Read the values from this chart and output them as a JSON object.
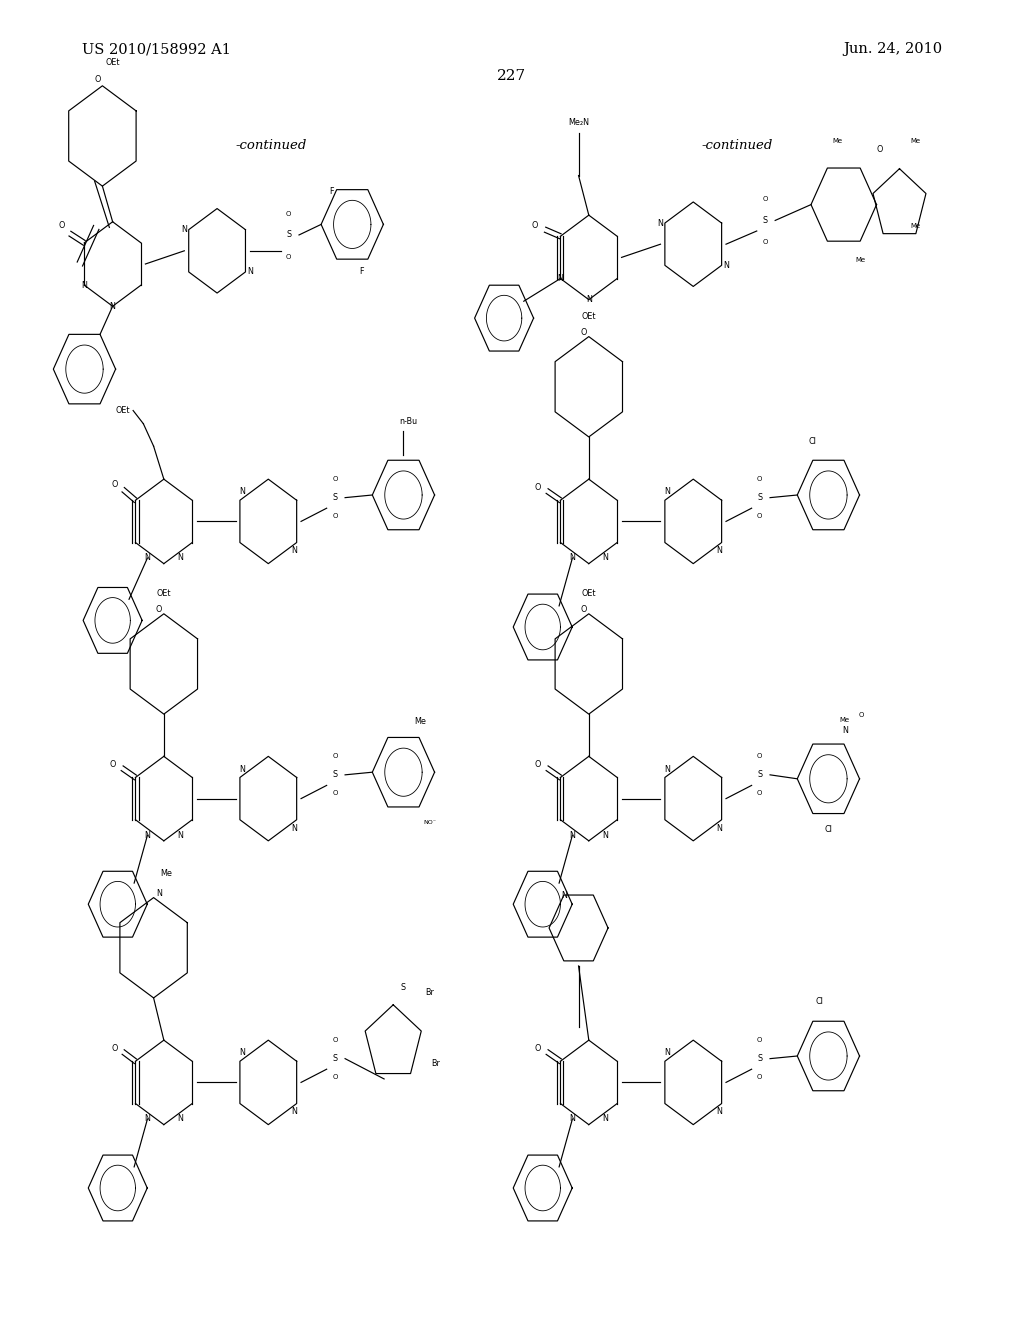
{
  "page_width": 10.24,
  "page_height": 13.2,
  "dpi": 100,
  "background_color": "#ffffff",
  "header_left": "US 2010/158992 A1",
  "header_right": "Jun. 24, 2010",
  "page_number": "227",
  "continued_left": "-continued",
  "continued_right": "-continued",
  "header_fontsize": 11,
  "pagenumber_fontsize": 12,
  "continued_fontsize": 10,
  "structure_image": true
}
